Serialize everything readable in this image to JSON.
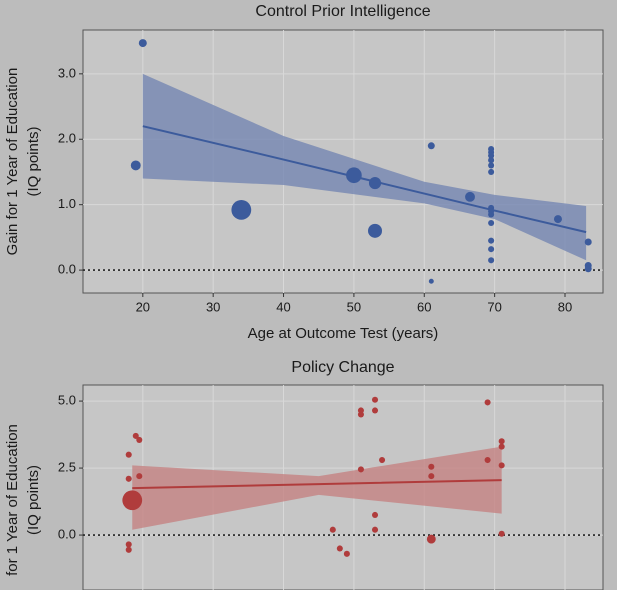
{
  "chart_data": [
    {
      "type": "scatter",
      "title": "Control Prior Intelligence",
      "xlabel": "Age at Outcome Test (years)",
      "ylabel": [
        "Gain for 1 Year of Education",
        "(IQ points)"
      ],
      "xlim": [
        11.5,
        85.4
      ],
      "xticks": [
        20,
        30,
        40,
        50,
        60,
        70,
        80
      ],
      "ylim": [
        -0.35,
        3.67
      ],
      "yticks": [
        {
          "value": 0,
          "label": "0.0"
        },
        {
          "value": 1,
          "label": "1.0"
        },
        {
          "value": 2,
          "label": "2.0"
        },
        {
          "value": 3,
          "label": "3.0"
        }
      ],
      "hline": 0,
      "grid": true,
      "color": "#3c5b9c",
      "band_color": "#6f82b0",
      "x": [
        20,
        19,
        34,
        50,
        53,
        53,
        61,
        61,
        66.5,
        69.5,
        69.5,
        69.5,
        69.5,
        69.5,
        69.5,
        69.5,
        69.5,
        69.5,
        69.5,
        69.5,
        69.5,
        69.5,
        79,
        83.3,
        83.3,
        83.3
      ],
      "y": [
        3.47,
        1.6,
        0.92,
        1.45,
        1.33,
        0.6,
        1.9,
        -0.17,
        1.12,
        1.85,
        1.8,
        1.75,
        1.68,
        1.6,
        1.5,
        0.95,
        0.9,
        0.85,
        0.72,
        0.45,
        0.32,
        0.15,
        0.78,
        0.43,
        0.07,
        0.02
      ],
      "sizes": [
        1.3,
        2,
        8,
        5,
        3,
        4,
        1,
        0.5,
        2,
        0.75,
        0.75,
        0.75,
        0.75,
        0.75,
        0.75,
        0.75,
        0.75,
        0.75,
        0.75,
        0.75,
        0.75,
        0.75,
        1.3,
        1,
        1,
        1
      ],
      "fit": {
        "x": [
          20,
          40,
          60,
          70,
          83
        ],
        "y": [
          2.2,
          1.69,
          1.17,
          0.91,
          0.58
        ],
        "lower": [
          1.4,
          1.3,
          1.02,
          0.78,
          0.15
        ],
        "upper": [
          3.0,
          2.05,
          1.35,
          1.15,
          0.98
        ]
      }
    },
    {
      "type": "scatter",
      "title": "Policy Change",
      "ylabel": [
        "for 1 Year of Education",
        "(IQ points)"
      ],
      "xlim": [
        11.5,
        85.4
      ],
      "ylim": [
        -2.05,
        5.6
      ],
      "yticks": [
        {
          "value": 0,
          "label": "0.0"
        },
        {
          "value": 2.5,
          "label": "2.5"
        },
        {
          "value": 5,
          "label": "5.0"
        }
      ],
      "hline": 0,
      "grid": true,
      "color": "#b03c3c",
      "band_color": "#c47d7d",
      "x": [
        18.5,
        18,
        18,
        18,
        18,
        19,
        19.5,
        19.5,
        47,
        48,
        49,
        51,
        51,
        51,
        53,
        53,
        53,
        53,
        54,
        61,
        61,
        61,
        61,
        69,
        69,
        71,
        71,
        71,
        71
      ],
      "y": [
        1.3,
        3.0,
        2.1,
        -0.35,
        -0.55,
        3.7,
        3.55,
        2.2,
        0.2,
        -0.5,
        -0.7,
        4.65,
        4.5,
        2.45,
        5.05,
        4.65,
        0.75,
        0.2,
        2.8,
        2.55,
        2.2,
        -0.15,
        -0.2,
        4.95,
        2.8,
        3.5,
        3.3,
        2.6,
        0.05
      ],
      "sizes": [
        8,
        0.75,
        0.75,
        0.75,
        0.75,
        0.75,
        0.75,
        0.75,
        0.75,
        0.75,
        0.75,
        0.75,
        0.75,
        0.75,
        0.75,
        0.75,
        0.75,
        0.75,
        0.75,
        0.75,
        0.75,
        1.6,
        0.75,
        0.75,
        0.75,
        0.75,
        0.75,
        0.75,
        0.75
      ],
      "fit": {
        "x": [
          18.5,
          45,
          71
        ],
        "y": [
          1.75,
          1.9,
          2.05
        ],
        "lower": [
          0.2,
          1.5,
          0.8
        ],
        "upper": [
          2.6,
          2.2,
          3.3
        ]
      }
    }
  ]
}
